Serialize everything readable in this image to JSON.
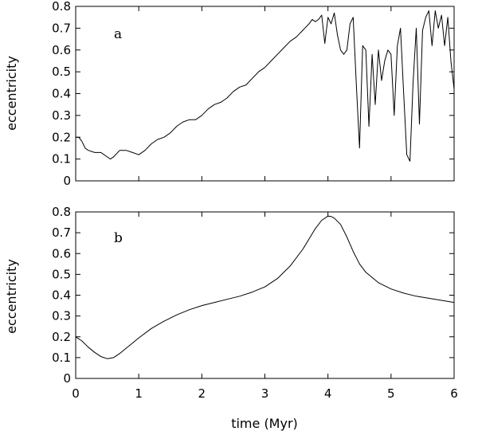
{
  "chart_data": [
    {
      "type": "line",
      "panel_label": "a",
      "ylabel": "eccentricity",
      "xlabel": "",
      "xlim": [
        0,
        6
      ],
      "ylim": [
        0,
        0.8
      ],
      "xticks": [
        0,
        1,
        2,
        3,
        4,
        5,
        6
      ],
      "yticks": [
        "0",
        "0.1",
        "0.2",
        "0.3",
        "0.4",
        "0.5",
        "0.6",
        "0.7",
        "0.8"
      ],
      "xtick_labels_shown": false,
      "grid": false,
      "series": [
        {
          "x": [
            0,
            0.05,
            0.1,
            0.15,
            0.2,
            0.3,
            0.4,
            0.5,
            0.55,
            0.6,
            0.7,
            0.8,
            0.9,
            1.0,
            1.1,
            1.2,
            1.3,
            1.4,
            1.5,
            1.6,
            1.7,
            1.8,
            1.9,
            2.0,
            2.1,
            2.2,
            2.3,
            2.4,
            2.5,
            2.6,
            2.7,
            2.8,
            2.9,
            3.0,
            3.1,
            3.2,
            3.3,
            3.4,
            3.5,
            3.6,
            3.7,
            3.75,
            3.8,
            3.85,
            3.9,
            3.95,
            4.0,
            4.05,
            4.1,
            4.15,
            4.2,
            4.25,
            4.3,
            4.35,
            4.4,
            4.45,
            4.5,
            4.55,
            4.6,
            4.65,
            4.7,
            4.75,
            4.8,
            4.85,
            4.9,
            4.95,
            5.0,
            5.05,
            5.1,
            5.15,
            5.2,
            5.25,
            5.3,
            5.35,
            5.4,
            5.45,
            5.5,
            5.55,
            5.6,
            5.65,
            5.7,
            5.75,
            5.8,
            5.85,
            5.9,
            5.95,
            6.0
          ],
          "y": [
            0.2,
            0.2,
            0.18,
            0.15,
            0.14,
            0.13,
            0.13,
            0.11,
            0.1,
            0.11,
            0.14,
            0.14,
            0.13,
            0.12,
            0.14,
            0.17,
            0.19,
            0.2,
            0.22,
            0.25,
            0.27,
            0.28,
            0.28,
            0.3,
            0.33,
            0.35,
            0.36,
            0.38,
            0.41,
            0.43,
            0.44,
            0.47,
            0.5,
            0.52,
            0.55,
            0.58,
            0.61,
            0.64,
            0.66,
            0.69,
            0.72,
            0.74,
            0.73,
            0.74,
            0.76,
            0.63,
            0.75,
            0.72,
            0.77,
            0.67,
            0.6,
            0.58,
            0.6,
            0.72,
            0.75,
            0.44,
            0.15,
            0.62,
            0.6,
            0.25,
            0.58,
            0.35,
            0.6,
            0.46,
            0.55,
            0.6,
            0.58,
            0.3,
            0.62,
            0.7,
            0.4,
            0.12,
            0.09,
            0.45,
            0.7,
            0.26,
            0.69,
            0.75,
            0.78,
            0.62,
            0.78,
            0.7,
            0.76,
            0.62,
            0.75,
            0.55,
            0.42
          ]
        }
      ]
    },
    {
      "type": "line",
      "panel_label": "b",
      "ylabel": "eccentricity",
      "xlabel": "time (Myr)",
      "xlim": [
        0,
        6
      ],
      "ylim": [
        0,
        0.8
      ],
      "xticks": [
        0,
        1,
        2,
        3,
        4,
        5,
        6
      ],
      "xtick_labels": [
        "0",
        "1",
        "2",
        "3",
        "4",
        "5",
        "6"
      ],
      "yticks": [
        "0",
        "0.1",
        "0.2",
        "0.3",
        "0.4",
        "0.5",
        "0.6",
        "0.7",
        "0.8"
      ],
      "grid": false,
      "series": [
        {
          "x": [
            0,
            0.1,
            0.2,
            0.3,
            0.4,
            0.5,
            0.6,
            0.7,
            0.8,
            0.9,
            1.0,
            1.2,
            1.4,
            1.6,
            1.8,
            2.0,
            2.2,
            2.4,
            2.6,
            2.8,
            3.0,
            3.2,
            3.4,
            3.6,
            3.7,
            3.8,
            3.9,
            4.0,
            4.05,
            4.1,
            4.2,
            4.3,
            4.4,
            4.5,
            4.6,
            4.8,
            5.0,
            5.2,
            5.4,
            5.6,
            5.8,
            6.0
          ],
          "y": [
            0.2,
            0.18,
            0.15,
            0.125,
            0.105,
            0.095,
            0.1,
            0.12,
            0.145,
            0.17,
            0.195,
            0.24,
            0.275,
            0.305,
            0.33,
            0.35,
            0.365,
            0.38,
            0.395,
            0.415,
            0.44,
            0.48,
            0.54,
            0.62,
            0.67,
            0.72,
            0.76,
            0.78,
            0.778,
            0.77,
            0.74,
            0.68,
            0.61,
            0.55,
            0.51,
            0.46,
            0.43,
            0.41,
            0.395,
            0.385,
            0.375,
            0.365
          ]
        }
      ]
    }
  ]
}
